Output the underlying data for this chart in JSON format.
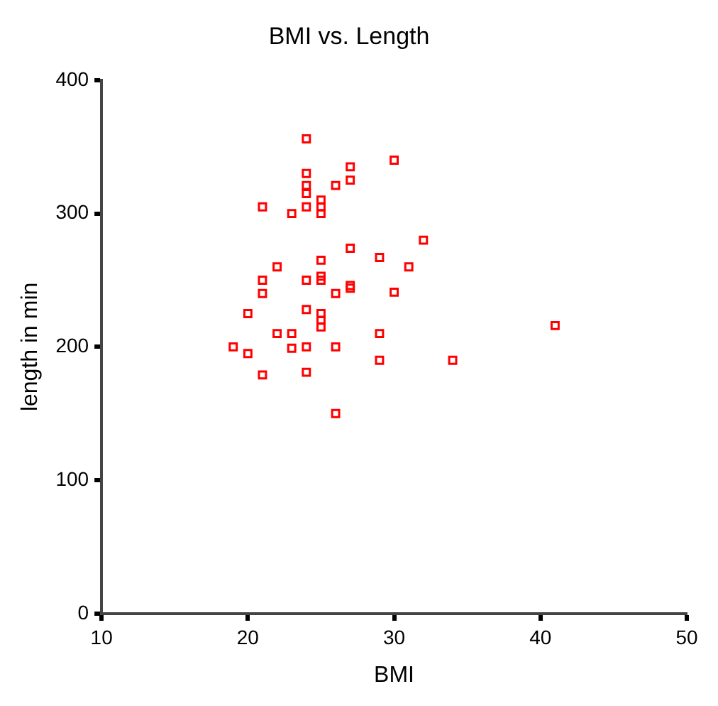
{
  "chart_data": {
    "type": "scatter",
    "title": "BMI vs. Length",
    "xlabel": "BMI",
    "ylabel": "length in min",
    "marker": "square",
    "grid": false,
    "legend": false,
    "xlim": [
      10,
      50
    ],
    "xticks": [
      10,
      20,
      30,
      40,
      50
    ],
    "ylim": [
      0,
      400
    ],
    "yticks": [
      0,
      100,
      200,
      300,
      400
    ],
    "series": [
      {
        "color": "#ff0000",
        "x": [
          24,
          30,
          27,
          27,
          24,
          26,
          24,
          24,
          25,
          25,
          25,
          21,
          24,
          23,
          32,
          27,
          29,
          22,
          31,
          25,
          25,
          25,
          24,
          21,
          21,
          26,
          27,
          27,
          30,
          20,
          24,
          25,
          25,
          25,
          41,
          22,
          23,
          29,
          19,
          20,
          23,
          24,
          26,
          29,
          34,
          21,
          24,
          26
        ],
        "values": [
          356,
          340,
          335,
          325,
          330,
          321,
          321,
          315,
          310,
          305,
          300,
          305,
          305,
          300,
          280,
          274,
          267,
          260,
          260,
          265,
          253,
          250,
          250,
          250,
          240,
          240,
          246,
          244,
          241,
          225,
          228,
          225,
          220,
          215,
          216,
          210,
          210,
          210,
          200,
          195,
          199,
          200,
          200,
          190,
          190,
          179,
          181,
          150
        ]
      }
    ]
  }
}
